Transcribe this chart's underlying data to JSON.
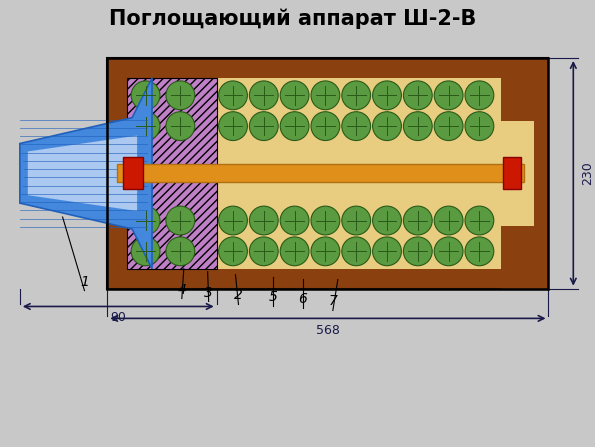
{
  "title": "Поглощающий аппарат Ш-2-В",
  "title_fontsize": 15,
  "bg_color": "#C8C8C8",
  "brown_outer": "#8B4010",
  "brown_hatch": "#7B3008",
  "tan_inner": "#E8CC80",
  "purple_fc": "#C080C8",
  "purple_hatch_color": "#9060A8",
  "green_fc": "#5A9A40",
  "green_ec": "#2A5A18",
  "orange_rod": "#E0901A",
  "orange_rod_ec": "#B07010",
  "red_part": "#CC1800",
  "red_part_ec": "#880000",
  "blue_dark": "#2060BB",
  "blue_mid": "#4488DD",
  "blue_light": "#AAC8F0",
  "dim_color": "#1A1A4A",
  "dim_230": "230",
  "dim_568": "568",
  "dim_90": "90",
  "labels": [
    [
      "1",
      85,
      158,
      63,
      230
    ],
    [
      "4",
      183,
      150,
      185,
      178
    ],
    [
      "3",
      210,
      147,
      209,
      175
    ],
    [
      "2",
      240,
      144,
      237,
      172
    ],
    [
      "5",
      275,
      142,
      275,
      170
    ],
    [
      "6",
      305,
      140,
      305,
      168
    ],
    [
      "7",
      335,
      138,
      340,
      167
    ]
  ]
}
